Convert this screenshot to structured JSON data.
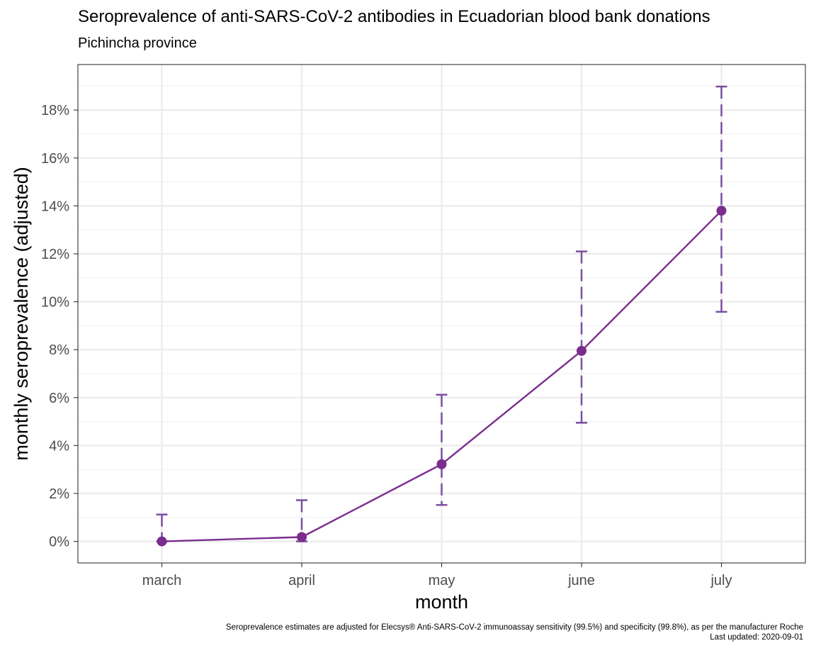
{
  "chart_data": {
    "type": "line",
    "title": "Seroprevalence of anti-SARS-CoV-2 antibodies in Ecuadorian blood bank donations",
    "subtitle": "Pichincha province",
    "xlabel": "month",
    "ylabel": "monthly seroprevalence (adjusted)",
    "categories": [
      "march",
      "april",
      "may",
      "june",
      "july"
    ],
    "series": [
      {
        "values": [
          0.0,
          0.18,
          3.22,
          7.95,
          13.8
        ],
        "lower": [
          0.0,
          0.0,
          1.52,
          4.95,
          9.58
        ],
        "upper": [
          1.12,
          1.72,
          6.12,
          12.1,
          18.98
        ]
      }
    ],
    "ylim": [
      -0.9,
      19.9
    ],
    "yticks": [
      0,
      2,
      4,
      6,
      8,
      10,
      12,
      14,
      16,
      18
    ],
    "ytick_labels": [
      "0%",
      "2%",
      "4%",
      "6%",
      "8%",
      "10%",
      "12%",
      "14%",
      "16%",
      "18%"
    ],
    "grid": true,
    "colors": {
      "line": "#7B2D8E",
      "errorbar": "#7B4FA0",
      "grid": "#EBEBEB"
    },
    "caption": [
      "Seroprevalence estimates are adjusted for Elecsys® Anti-SARS-CoV-2 immunoassay sensitivity (99.5%) and specificity (99.8%), as per the manufacturer Roche",
      "Last updated: 2020-09-01"
    ]
  }
}
